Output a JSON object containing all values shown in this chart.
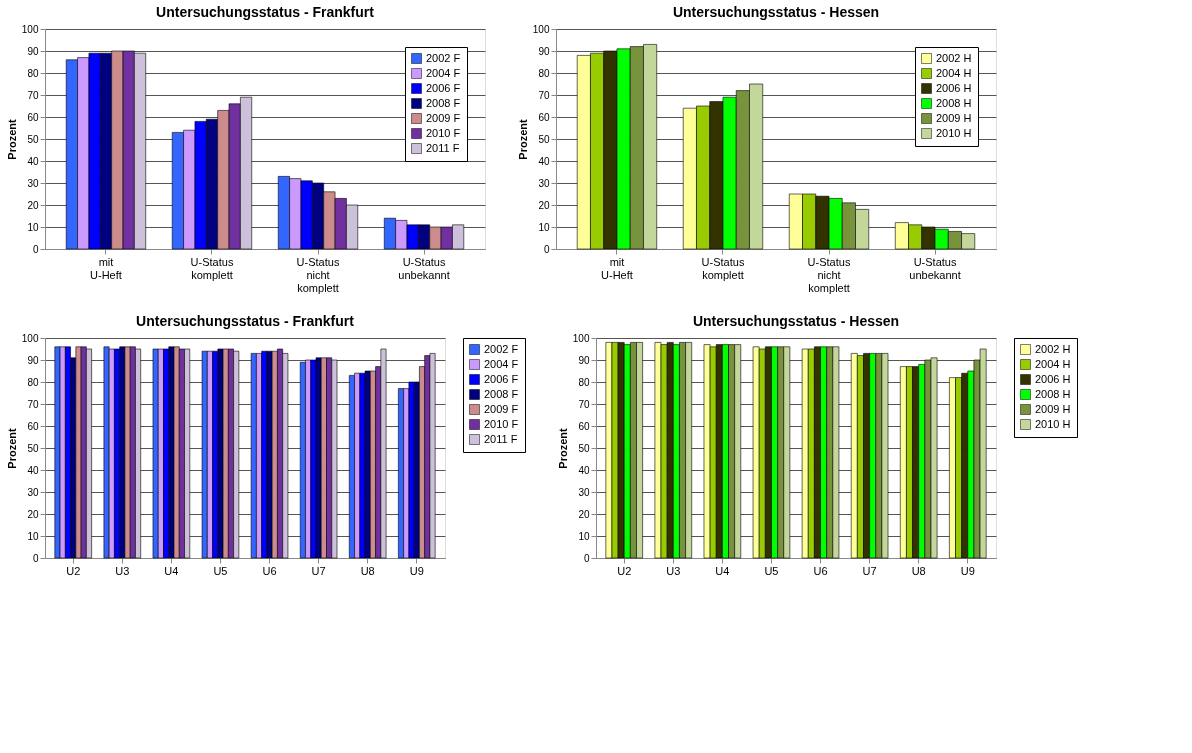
{
  "chart_data": [
    {
      "type": "bar",
      "title": "Untersuchungsstatus - Frankfurt",
      "ylabel": "Prozent",
      "categories": [
        "mit U-Heft",
        "U-Status komplett",
        "U-Status nicht komplett",
        "U-Status unbekannt"
      ],
      "ylim": [
        0,
        100
      ],
      "yticks": [
        0,
        10,
        20,
        30,
        40,
        50,
        60,
        70,
        80,
        90,
        100
      ],
      "grid": "y",
      "legend": "top right",
      "series": [
        {
          "name": "2002 F",
          "color": "#3366ff",
          "values": [
            86,
            53,
            33,
            14
          ]
        },
        {
          "name": "2004 F",
          "color": "#cc99ff",
          "values": [
            87,
            54,
            32,
            13
          ]
        },
        {
          "name": "2006 F",
          "color": "#0000ff",
          "values": [
            89,
            58,
            31,
            11
          ]
        },
        {
          "name": "2008 F",
          "color": "#000080",
          "values": [
            89,
            59,
            30,
            11
          ]
        },
        {
          "name": "2009 F",
          "color": "#cc8c8c",
          "values": [
            90,
            63,
            26,
            10
          ]
        },
        {
          "name": "2010 F",
          "color": "#7030a0",
          "values": [
            90,
            66,
            23,
            10
          ]
        },
        {
          "name": "2011 F",
          "color": "#ccc0da",
          "values": [
            89,
            69,
            20,
            11
          ]
        }
      ]
    },
    {
      "type": "bar",
      "title": "Untersuchungsstatus - Hessen",
      "ylabel": "Prozent",
      "categories": [
        "mit U-Heft",
        "U-Status komplett",
        "U-Status nicht komplett",
        "U-Status unbekannt"
      ],
      "ylim": [
        0,
        100
      ],
      "yticks": [
        0,
        10,
        20,
        30,
        40,
        50,
        60,
        70,
        80,
        90,
        100
      ],
      "grid": "y",
      "legend": "top right",
      "series": [
        {
          "name": "2002 H",
          "color": "#ffff99",
          "values": [
            88,
            64,
            25,
            12
          ]
        },
        {
          "name": "2004 H",
          "color": "#99cc00",
          "values": [
            89,
            65,
            25,
            11
          ]
        },
        {
          "name": "2006 H",
          "color": "#333300",
          "values": [
            90,
            67,
            24,
            10
          ]
        },
        {
          "name": "2008 H",
          "color": "#00ff00",
          "values": [
            91,
            69,
            23,
            9
          ]
        },
        {
          "name": "2009 H",
          "color": "#77933c",
          "values": [
            92,
            72,
            21,
            8
          ]
        },
        {
          "name": "2010 H",
          "color": "#c4d79b",
          "values": [
            93,
            75,
            18,
            7
          ]
        }
      ]
    },
    {
      "type": "bar",
      "title": "Untersuchungsstatus - Frankfurt",
      "ylabel": "Prozent",
      "categories": [
        "U2",
        "U3",
        "U4",
        "U5",
        "U6",
        "U7",
        "U8",
        "U9"
      ],
      "ylim": [
        0,
        100
      ],
      "yticks": [
        0,
        10,
        20,
        30,
        40,
        50,
        60,
        70,
        80,
        90,
        100
      ],
      "grid": "y",
      "legend": "right",
      "series": [
        {
          "name": "2002 F",
          "color": "#3366ff",
          "values": [
            96,
            96,
            95,
            94,
            93,
            89,
            83,
            77
          ]
        },
        {
          "name": "2004 F",
          "color": "#cc99ff",
          "values": [
            96,
            95,
            95,
            94,
            93,
            90,
            84,
            77
          ]
        },
        {
          "name": "2006 F",
          "color": "#0000ff",
          "values": [
            96,
            95,
            95,
            94,
            94,
            90,
            84,
            80
          ]
        },
        {
          "name": "2008 F",
          "color": "#000080",
          "values": [
            91,
            96,
            96,
            95,
            94,
            91,
            85,
            80
          ]
        },
        {
          "name": "2009 F",
          "color": "#cc8c8c",
          "values": [
            96,
            96,
            96,
            95,
            94,
            91,
            85,
            87
          ]
        },
        {
          "name": "2010 F",
          "color": "#7030a0",
          "values": [
            96,
            96,
            95,
            95,
            95,
            91,
            87,
            92
          ]
        },
        {
          "name": "2011 F",
          "color": "#ccc0da",
          "values": [
            95,
            95,
            95,
            94,
            93,
            90,
            95,
            93
          ]
        }
      ]
    },
    {
      "type": "bar",
      "title": "Untersuchungsstatus - Hessen",
      "ylabel": "Prozent",
      "categories": [
        "U2",
        "U3",
        "U4",
        "U5",
        "U6",
        "U7",
        "U8",
        "U9"
      ],
      "ylim": [
        0,
        100
      ],
      "yticks": [
        0,
        10,
        20,
        30,
        40,
        50,
        60,
        70,
        80,
        90,
        100
      ],
      "grid": "y",
      "legend": "right",
      "series": [
        {
          "name": "2002 H",
          "color": "#ffff99",
          "values": [
            98,
            98,
            97,
            96,
            95,
            93,
            87,
            82
          ]
        },
        {
          "name": "2004 H",
          "color": "#99cc00",
          "values": [
            98,
            97,
            96,
            95,
            95,
            92,
            87,
            82
          ]
        },
        {
          "name": "2006 H",
          "color": "#333300",
          "values": [
            98,
            98,
            97,
            96,
            96,
            93,
            87,
            84
          ]
        },
        {
          "name": "2008 H",
          "color": "#00ff00",
          "values": [
            97,
            97,
            97,
            96,
            96,
            93,
            88,
            85
          ]
        },
        {
          "name": "2009 H",
          "color": "#77933c",
          "values": [
            98,
            98,
            97,
            96,
            96,
            93,
            90,
            90
          ]
        },
        {
          "name": "2010 H",
          "color": "#c4d79b",
          "values": [
            98,
            98,
            97,
            96,
            96,
            93,
            91,
            95
          ]
        }
      ]
    }
  ]
}
